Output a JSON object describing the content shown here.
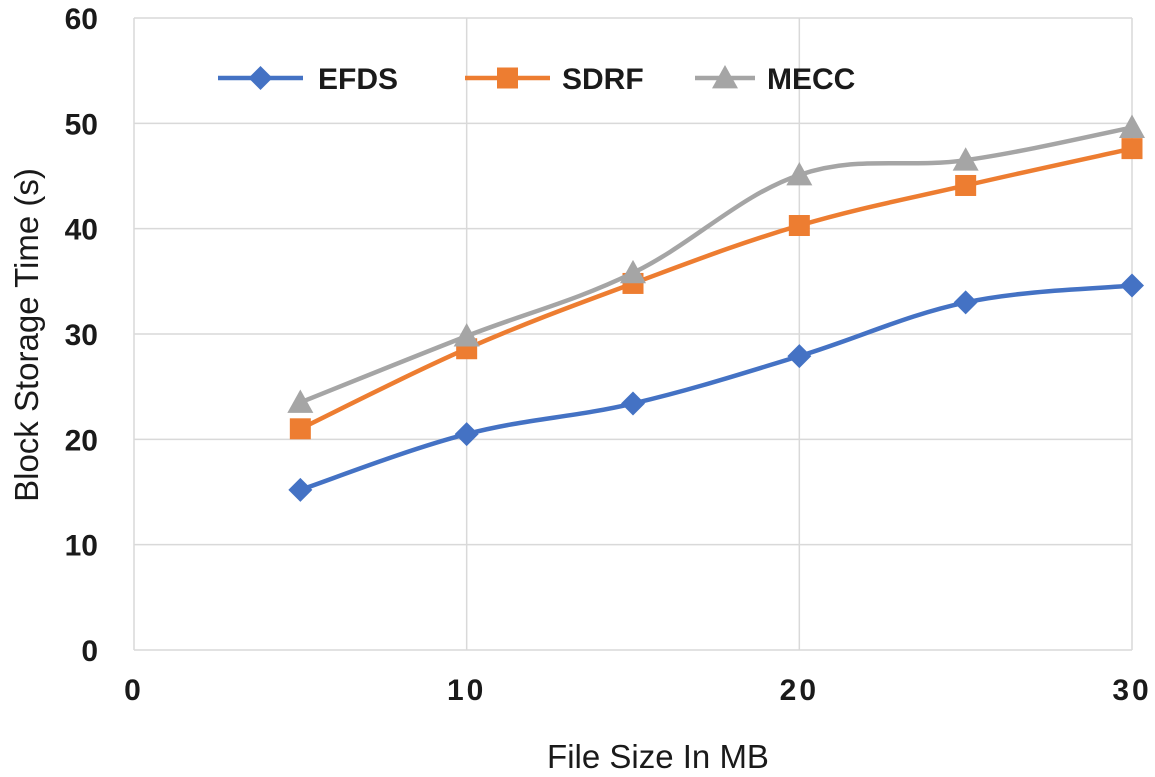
{
  "chart_data": {
    "type": "line",
    "title": "",
    "xlabel": "File Size In MB",
    "ylabel": "Block Storage Time (s)",
    "xlim": [
      0,
      30
    ],
    "ylim": [
      0,
      60
    ],
    "xticks": [
      0,
      10,
      20,
      30
    ],
    "yticks": [
      0,
      10,
      20,
      30,
      40,
      50,
      60
    ],
    "x": [
      5,
      10,
      15,
      20,
      25,
      30
    ],
    "grid": true,
    "legend_position": "top-left",
    "series": [
      {
        "name": "EFDS",
        "color": "#4472c4",
        "marker": "diamond",
        "values": [
          15.2,
          20.5,
          23.4,
          27.9,
          33.0,
          34.6
        ]
      },
      {
        "name": "SDRF",
        "color": "#ed7d31",
        "marker": "square",
        "values": [
          21.0,
          28.6,
          34.8,
          40.3,
          44.1,
          47.6
        ]
      },
      {
        "name": "MECC",
        "color": "#a5a5a5",
        "marker": "triangle",
        "values": [
          23.5,
          29.8,
          35.8,
          45.1,
          46.5,
          49.6
        ]
      }
    ]
  }
}
